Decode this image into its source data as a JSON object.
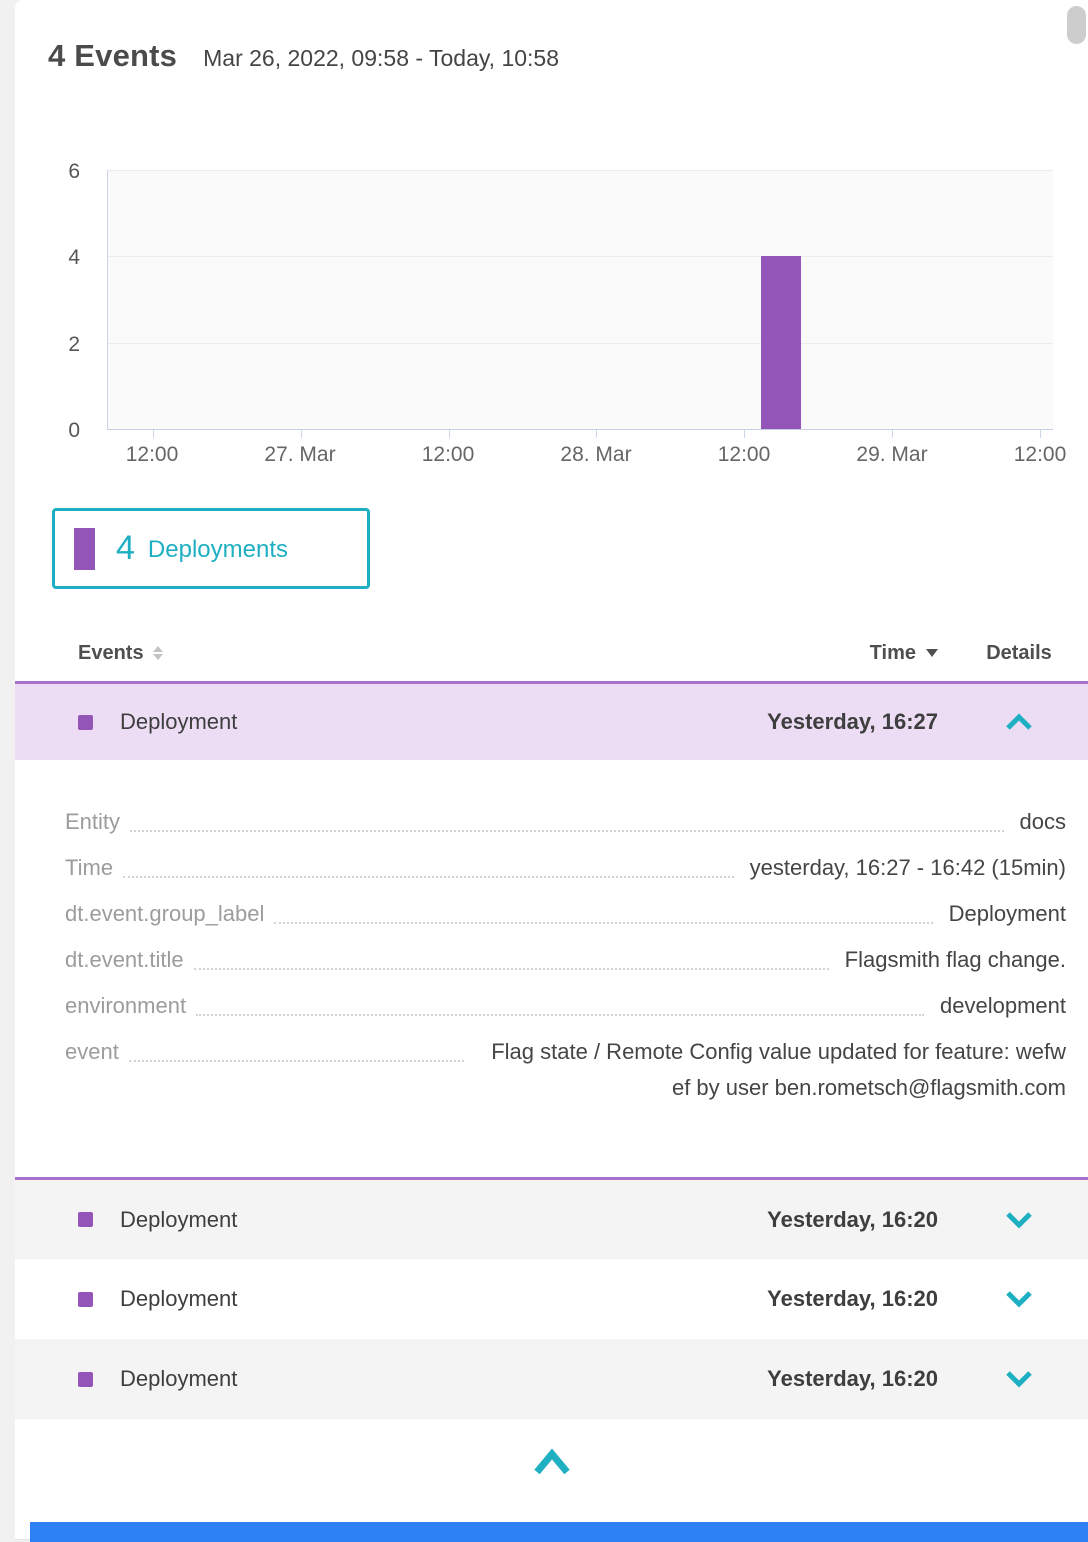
{
  "header": {
    "title": "4 Events",
    "timerange": "Mar 26, 2022, 09:58 - Today, 10:58"
  },
  "chart_data": {
    "type": "bar",
    "x_ticks": [
      "12:00",
      "27. Mar",
      "12:00",
      "28. Mar",
      "12:00",
      "29. Mar",
      "12:00"
    ],
    "y_ticks": [
      0,
      2,
      4,
      6
    ],
    "ylim": [
      0,
      6
    ],
    "grid": "horizontal",
    "legend_position": "below-left",
    "series": [
      {
        "name": "Deployments",
        "color": "#9355b7",
        "points": [
          {
            "x": "28. Mar ~14:00",
            "y": 4
          }
        ]
      }
    ],
    "bar": {
      "value": 4,
      "position_frac": 0.6913
    }
  },
  "legend": {
    "count": "4",
    "label": "Deployments"
  },
  "table": {
    "headers": {
      "events": "Events",
      "time": "Time",
      "details": "Details"
    },
    "rows": [
      {
        "event_type": "Deployment",
        "time": "Yesterday, 16:27",
        "state": "expanded",
        "details": [
          {
            "label": "Entity",
            "value": "docs"
          },
          {
            "label": "Time",
            "value": "yesterday, 16:27 - 16:42 (15min)"
          },
          {
            "label": "dt.event.group_label",
            "value": "Deployment"
          },
          {
            "label": "dt.event.title",
            "value": "Flagsmith flag change."
          },
          {
            "label": "environment",
            "value": "development"
          },
          {
            "label": "event",
            "value": "Flag state / Remote Config value updated for feature: wefwef by user ben.rometsch@flagsmith.com"
          }
        ]
      },
      {
        "event_type": "Deployment",
        "time": "Yesterday, 16:20",
        "state": "collapsed"
      },
      {
        "event_type": "Deployment",
        "time": "Yesterday, 16:20",
        "state": "collapsed"
      },
      {
        "event_type": "Deployment",
        "time": "Yesterday, 16:20",
        "state": "collapsed"
      }
    ]
  },
  "colors": {
    "accent_teal": "#1fafc2",
    "event_purple": "#9355b7",
    "expanded_row_bg": "#ecdcf4",
    "row_border_purple": "#a873ca",
    "zebra_grey": "#f4f4f4",
    "bottom_bar_blue": "#2e80f5"
  }
}
